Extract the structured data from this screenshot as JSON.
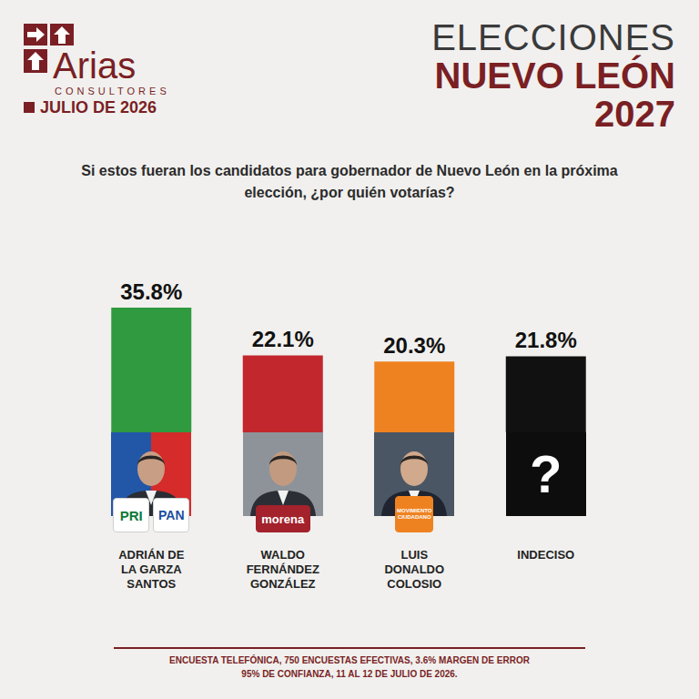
{
  "header": {
    "brand": "Arias",
    "brand_sub": "CONSULTORES",
    "date": "JULIO DE 2026",
    "title_lines": [
      "ELECCIONES",
      "NUEVO LEÓN",
      "2027"
    ]
  },
  "chart_data": {
    "type": "bar",
    "title": "Si estos fueran los candidatos para gobernador de Nuevo León en la próxima elección, ¿por quién votarías?",
    "categories": [
      "ADRIÁN DE LA GARZA SANTOS",
      "WALDO FERNÁNDEZ GONZÁLEZ",
      "LUIS DONALDO COLOSIO",
      "INDECISO"
    ],
    "values": [
      35.8,
      22.1,
      20.3,
      21.8
    ],
    "value_labels": [
      "35.8%",
      "22.1%",
      "20.3%",
      "21.8%"
    ],
    "colors": [
      "#2f9a3f",
      "#c1272d",
      "#ef8220",
      "#111111"
    ],
    "ylim": [
      0,
      40
    ],
    "yticks": [
      0,
      40
    ],
    "grid": false,
    "data_labels": true,
    "tick_labels": "x"
  },
  "candidate_panels": [
    {
      "parties": [
        "PRI",
        "PAN"
      ]
    },
    {
      "parties": [
        "morena"
      ]
    },
    {
      "parties": [
        "MOVIMIENTO CIUDADANO"
      ]
    },
    {
      "symbol": "?"
    }
  ],
  "footer": [
    "ENCUESTA TELEFÓNICA, 750 ENCUESTAS EFECTIVAS, 3.6% MARGEN DE ERROR",
    "95% DE CONFIANZA, 11 AL 12 DE JULIO DE 2026."
  ]
}
